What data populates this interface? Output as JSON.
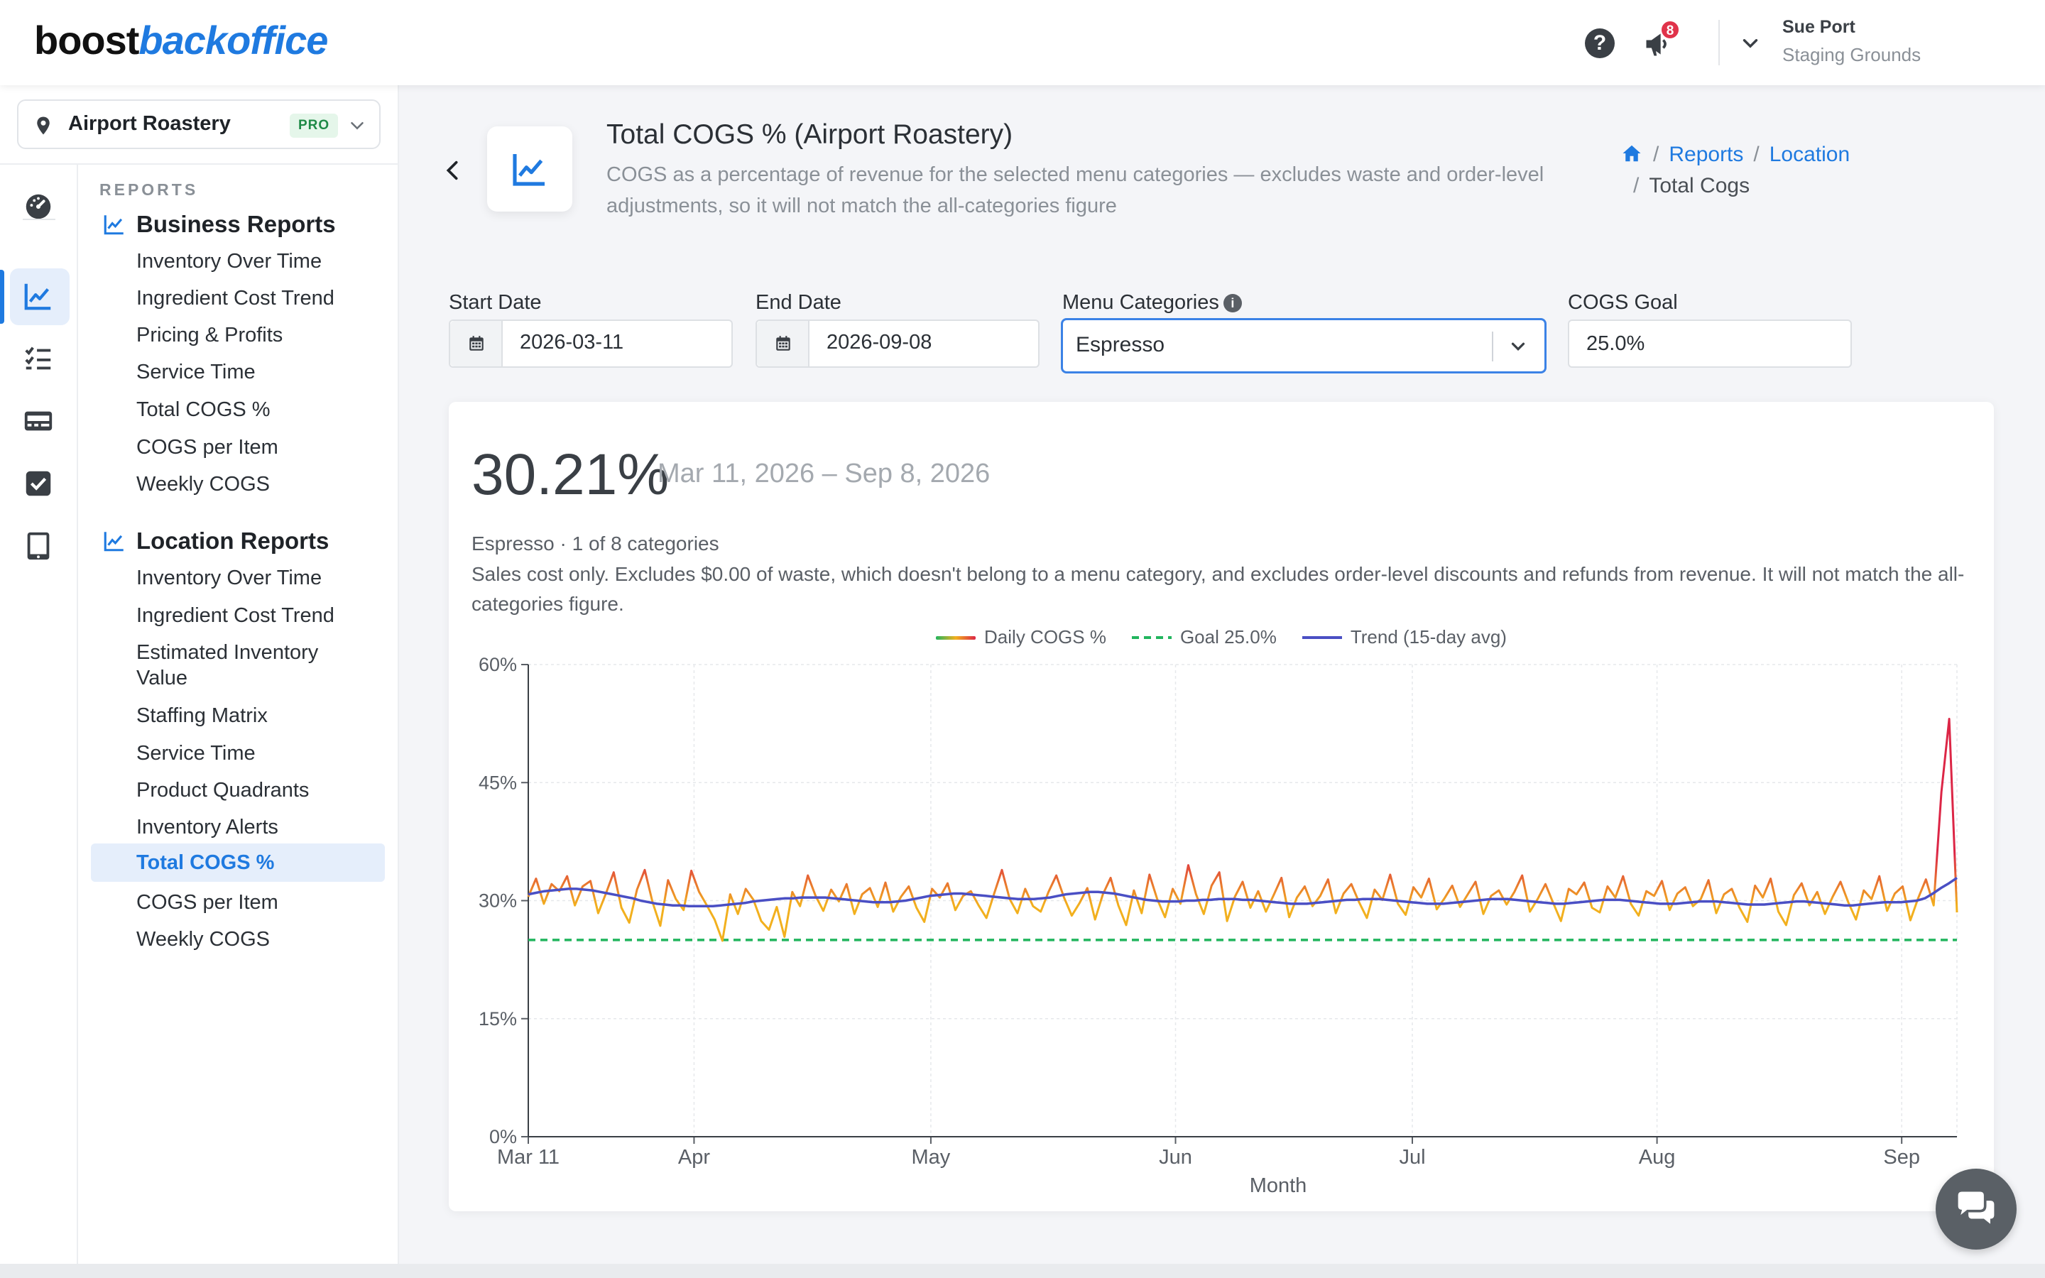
{
  "brand": {
    "part1": "boost",
    "part2": "backoffice"
  },
  "header": {
    "notification_count": "8",
    "user_name": "Sue Port",
    "user_org": "Staging Grounds"
  },
  "sidebar": {
    "location": "Airport Roastery",
    "plan_badge": "PRO",
    "section_label": "REPORTS",
    "business_title": "Business Reports",
    "business_items": [
      "Inventory Over Time",
      "Ingredient Cost Trend",
      "Pricing & Profits",
      "Service Time",
      "Total COGS %",
      "COGS per Item",
      "Weekly COGS"
    ],
    "location_title": "Location Reports",
    "location_items": [
      "Inventory Over Time",
      "Ingredient Cost Trend",
      "Estimated Inventory",
      "Value",
      "Staffing Matrix",
      "Service Time",
      "Product Quadrants",
      "Inventory Alerts",
      "Total COGS %",
      "COGS per Item",
      "Weekly COGS"
    ],
    "rail_icons": [
      "dashboard-icon",
      "chart-line-icon",
      "checklist-icon",
      "register-icon",
      "checkbox-icon",
      "tablet-icon"
    ]
  },
  "page": {
    "title": "Total COGS % (Airport Roastery)",
    "description": "COGS as a percentage of revenue for the selected menu categories — excludes waste and order-level adjustments, so it will not match the all-categories figure",
    "breadcrumb": {
      "reports": "Reports",
      "location": "Location",
      "current": "Total Cogs"
    }
  },
  "filters": {
    "start_label": "Start Date",
    "start_value": "2026-03-11",
    "end_label": "End Date",
    "end_value": "2026-09-08",
    "categories_label": "Menu Categories",
    "categories_value": "Espresso",
    "goal_label": "COGS Goal",
    "goal_value": "25.0%"
  },
  "summary": {
    "value": "30.21%",
    "range": "Mar 11, 2026 – Sep 8, 2026",
    "category_note": "Espresso · 1 of 8 categories",
    "disclaimer": "Sales cost only. Excludes $0.00 of waste, which doesn't belong to a menu category, and excludes order-level discounts and refunds from revenue. It will not match the all-categories figure."
  },
  "colors": {
    "accent": "#1f7ae0",
    "goal_line": "#22b55e",
    "trend_line": "#4a4fc4",
    "daily_low": "#f2b01e",
    "daily_high": "#dc2646"
  },
  "chart_data": {
    "type": "line",
    "xlabel": "Month",
    "ylabel": "",
    "ylim": [
      0,
      60
    ],
    "yticks": [
      "0%",
      "15%",
      "30%",
      "45%",
      "60%"
    ],
    "xticks": [
      "Mar 11",
      "Apr",
      "May",
      "Jun",
      "Jul",
      "Aug",
      "Sep"
    ],
    "xtick_dates": [
      "2026-03-11",
      "2026-04-01",
      "2026-05-01",
      "2026-06-01",
      "2026-07-01",
      "2026-08-01",
      "2026-09-01"
    ],
    "x_start": "2026-03-11",
    "x_end": "2026-09-08",
    "grid": true,
    "legend": "top-center",
    "goal": 25.0,
    "series": [
      {
        "name": "Daily COGS %",
        "values": [
          30.5,
          32.8,
          29.6,
          32.1,
          31.2,
          33.1,
          29.4,
          31.8,
          32.5,
          28.4,
          30.9,
          33.6,
          29.1,
          27.2,
          31.4,
          33.9,
          29.8,
          26.8,
          32.6,
          30.2,
          28.8,
          33.8,
          31.1,
          29.4,
          27.6,
          24.9,
          30.8,
          28.3,
          31.5,
          30.1,
          27.4,
          26.3,
          29.2,
          25.4,
          31.1,
          29.3,
          33.2,
          30.6,
          28.7,
          31.4,
          29.9,
          32.1,
          28.3,
          30.8,
          31.6,
          29.2,
          32.3,
          28.6,
          30.5,
          31.8,
          29.1,
          27.3,
          31.5,
          30.4,
          32.2,
          28.8,
          30.6,
          31.2,
          29.4,
          27.8,
          30.9,
          33.9,
          30.2,
          28.4,
          31.5,
          29.3,
          28.6,
          31.1,
          33.2,
          30.4,
          28.1,
          29.7,
          31.6,
          27.6,
          30.8,
          32.9,
          29.4,
          26.9,
          31.3,
          28.4,
          33.3,
          30.2,
          27.9,
          31.5,
          29.6,
          34.5,
          30.8,
          28.3,
          31.9,
          33.6,
          27.4,
          30.5,
          32.4,
          29.1,
          31.2,
          28.6,
          30.7,
          32.9,
          27.9,
          30.4,
          31.8,
          29.3,
          30.6,
          32.7,
          28.4,
          30.9,
          32.1,
          29.8,
          27.8,
          31.4,
          30.1,
          33.3,
          29.6,
          28.2,
          31.7,
          30.4,
          32.8,
          28.9,
          30.3,
          31.9,
          29.2,
          30.8,
          32.4,
          28.3,
          30.6,
          31.3,
          29.5,
          31.1,
          33.2,
          28.6,
          30.2,
          32.1,
          29.7,
          27.4,
          31.5,
          30.8,
          32.3,
          29.1,
          28.5,
          31.8,
          30.4,
          33.1,
          29.6,
          28.1,
          31.2,
          30.6,
          32.5,
          28.8,
          30.9,
          31.7,
          29.3,
          30.2,
          32.6,
          28.4,
          30.8,
          31.5,
          29.1,
          27.3,
          31.9,
          30.4,
          32.8,
          28.6,
          26.9,
          30.7,
          32.2,
          29.4,
          31.1,
          28.3,
          30.5,
          32.4,
          29.8,
          27.6,
          31.3,
          30.2,
          33.1,
          28.7,
          30.9,
          31.8,
          27.5,
          30.3,
          32.7,
          29.4,
          43.8,
          53.1,
          28.5
        ]
      },
      {
        "name": "Trend (15-day avg)",
        "values": [
          30.8,
          31.0,
          31.2,
          31.3,
          31.4,
          31.5,
          31.5,
          31.4,
          31.3,
          31.1,
          30.9,
          30.7,
          30.5,
          30.3,
          30.0,
          29.8,
          29.6,
          29.5,
          29.4,
          29.4,
          29.3,
          29.3,
          29.3,
          29.3,
          29.4,
          29.5,
          29.6,
          29.7,
          29.9,
          30.0,
          30.1,
          30.2,
          30.3,
          30.3,
          30.4,
          30.4,
          30.4,
          30.4,
          30.3,
          30.2,
          30.1,
          30.0,
          29.9,
          29.8,
          29.8,
          29.8,
          29.9,
          30.0,
          30.2,
          30.4,
          30.6,
          30.7,
          30.8,
          30.9,
          30.9,
          30.8,
          30.7,
          30.6,
          30.5,
          30.4,
          30.3,
          30.2,
          30.2,
          30.2,
          30.3,
          30.4,
          30.6,
          30.8,
          30.9,
          31.0,
          31.1,
          31.1,
          31.0,
          30.9,
          30.7,
          30.5,
          30.3,
          30.1,
          30.0,
          29.9,
          29.9,
          29.9,
          30.0,
          30.0,
          30.1,
          30.1,
          30.2,
          30.2,
          30.2,
          30.1,
          30.1,
          30.0,
          29.9,
          29.8,
          29.7,
          29.6,
          29.6,
          29.6,
          29.7,
          29.8,
          29.9,
          30.0,
          30.1,
          30.1,
          30.2,
          30.2,
          30.2,
          30.1,
          30.0,
          29.9,
          29.8,
          29.7,
          29.6,
          29.6,
          29.6,
          29.7,
          29.8,
          29.9,
          30.0,
          30.1,
          30.2,
          30.2,
          30.2,
          30.1,
          30.0,
          29.9,
          29.8,
          29.7,
          29.6,
          29.6,
          29.7,
          29.8,
          29.9,
          30.0,
          30.1,
          30.1,
          30.1,
          30.0,
          29.9,
          29.8,
          29.7,
          29.6,
          29.6,
          29.6,
          29.7,
          29.8,
          29.9,
          29.9,
          29.9,
          29.8,
          29.7,
          29.6,
          29.5,
          29.5,
          29.5,
          29.6,
          29.7,
          29.8,
          29.9,
          29.9,
          29.8,
          29.7,
          29.6,
          29.5,
          29.4,
          29.4,
          29.5,
          29.6,
          29.7,
          29.8,
          29.8,
          29.8,
          29.9,
          30.0,
          30.3,
          30.9,
          31.6,
          32.2,
          32.9
        ]
      }
    ]
  }
}
